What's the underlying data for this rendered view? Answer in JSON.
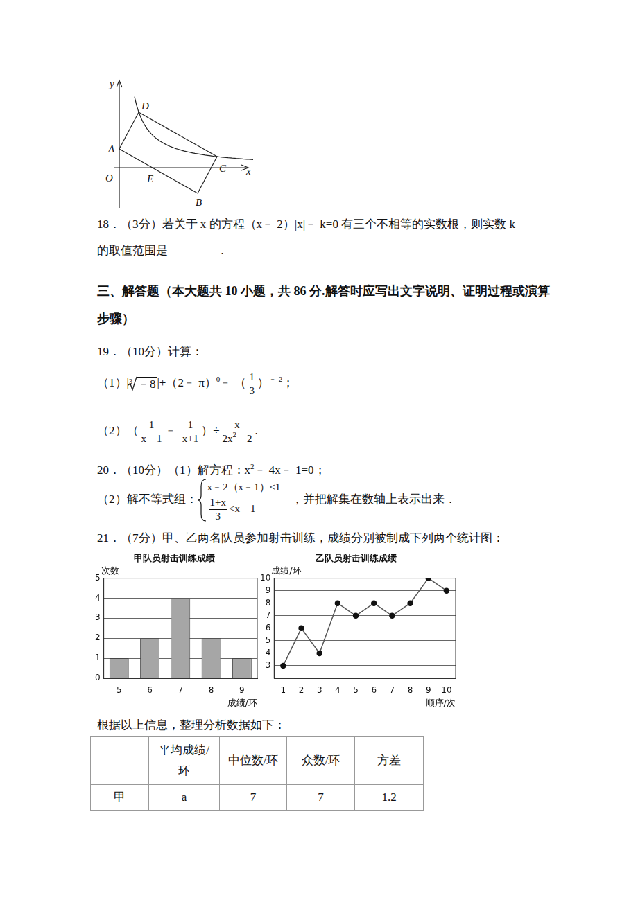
{
  "figure": {
    "labels": [
      "y",
      "x",
      "O",
      "A",
      "D",
      "C",
      "E",
      "B"
    ]
  },
  "q18": {
    "line1": "18．（3分）若关于 x 的方程（x﹣ 2）|x|﹣ k=0 有三个不相等的实数根，则实数 k",
    "line2": "的取值范围是",
    "after_blank": "．"
  },
  "section3": "三、解答题（本大题共 10 小题，共 86 分.解答时应写出文字说明、证明过程或演算步骤）",
  "q19": {
    "stem": "19．（10分）计算：",
    "part1": [
      "（1）|",
      {
        "root": [
          "3",
          "﹣8"
        ]
      },
      "|+（2﹣ π）",
      {
        "sup": "0"
      },
      "﹣ （",
      {
        "frac": [
          "1",
          "3"
        ]
      },
      "）",
      {
        "sup": "﹣ 2"
      },
      "；"
    ],
    "part2": [
      "（2）（",
      {
        "frac": [
          "1",
          "x﹣1"
        ]
      },
      "﹣ ",
      {
        "frac": [
          "1",
          "x+1"
        ]
      },
      "）÷",
      {
        "frac": [
          [
            "x"
          ],
          [
            "2x",
            {
              "sup": "2"
            },
            "﹣2"
          ]
        ]
      },
      "."
    ]
  },
  "q20": {
    "part1": [
      "20．（10分）（1）解方程：x",
      {
        "sup": "2"
      },
      "﹣ 4x﹣ 1=0；"
    ],
    "part2_before": "（2）解不等式组：",
    "system": [
      [
        "x﹣2（x﹣1）≤1"
      ],
      [
        {
          "frac": [
            "1+x",
            "3"
          ]
        },
        "<x﹣1"
      ]
    ],
    "part2_after": "，并把解集在数轴上表示出来．"
  },
  "q21": {
    "stem": "21．（7分）甲、乙两名队员参加射击训练，成绩分别被制成下列两个统计图：",
    "after_charts": "根据以上信息，整理分析数据如下：",
    "table": {
      "header": [
        "",
        "平均成绩/环",
        "中位数/环",
        "众数/环",
        "方差"
      ],
      "rows": [
        [
          "甲",
          "a",
          "7",
          "7",
          "1.2"
        ]
      ]
    }
  },
  "chart_data": [
    {
      "type": "bar",
      "title": "甲队员射击训练成绩",
      "x_label": "成绩/环",
      "y_label": "次数",
      "categories": [
        5,
        6,
        7,
        8,
        9
      ],
      "values": [
        1,
        2,
        4,
        2,
        1
      ],
      "color": "#a6a6a6",
      "ylim": [
        0,
        5
      ],
      "yticks": [
        0,
        1,
        2,
        3,
        4,
        5
      ],
      "grid": true
    },
    {
      "type": "line",
      "title": "乙队员射击训练成绩",
      "x_label": "顺序/次",
      "y_label": "成绩/环",
      "categories": [
        1,
        2,
        3,
        4,
        5,
        6,
        7,
        8,
        9,
        10
      ],
      "values": [
        3,
        6,
        4,
        8,
        7,
        8,
        7,
        8,
        10,
        9
      ],
      "color": "#555555",
      "marker": "circle",
      "ylim": [
        2,
        10
      ],
      "yticks": [
        3,
        4,
        5,
        6,
        7,
        8,
        9,
        10
      ],
      "grid": true
    }
  ]
}
